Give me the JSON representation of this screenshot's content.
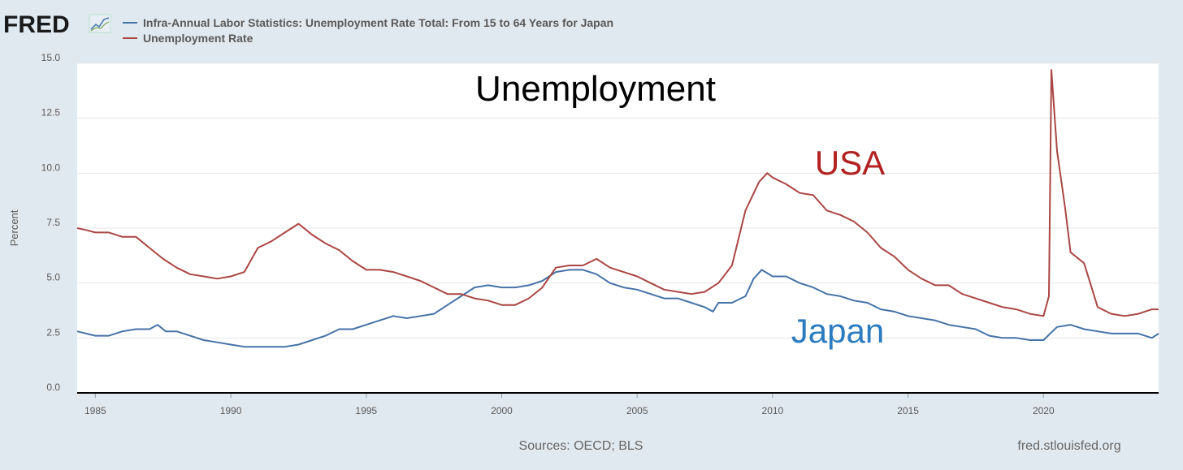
{
  "logo": {
    "text": "FRED",
    "icon": "chart-line-icon"
  },
  "chart_data": {
    "type": "line",
    "title": "Unemployment",
    "ylabel": "Percent",
    "xlabel": "",
    "xlim": [
      1984.33,
      2024.25
    ],
    "ylim": [
      0,
      15
    ],
    "yticks": [
      "0.0",
      "2.5",
      "5.0",
      "7.5",
      "10.0",
      "12.5",
      "15.0"
    ],
    "xticks": [
      "1985",
      "1990",
      "1995",
      "2000",
      "2005",
      "2010",
      "2015",
      "2020"
    ],
    "grid": true,
    "legend_position": "top-left",
    "series": [
      {
        "name": "Infra-Annual Labor Statistics: Unemployment Rate Total: From 15 to 64 Years for Japan",
        "annotation": "Japan",
        "color": "#4572a7",
        "annotation_color": "#2a7bbf",
        "points": [
          [
            1984.33,
            2.8
          ],
          [
            1985.0,
            2.6
          ],
          [
            1985.5,
            2.6
          ],
          [
            1986.0,
            2.8
          ],
          [
            1986.5,
            2.9
          ],
          [
            1987.0,
            2.9
          ],
          [
            1987.3,
            3.1
          ],
          [
            1987.6,
            2.8
          ],
          [
            1988.0,
            2.8
          ],
          [
            1988.5,
            2.6
          ],
          [
            1989.0,
            2.4
          ],
          [
            1989.5,
            2.3
          ],
          [
            1990.0,
            2.2
          ],
          [
            1990.5,
            2.1
          ],
          [
            1991.0,
            2.1
          ],
          [
            1991.5,
            2.1
          ],
          [
            1992.0,
            2.1
          ],
          [
            1992.5,
            2.2
          ],
          [
            1993.0,
            2.4
          ],
          [
            1993.5,
            2.6
          ],
          [
            1994.0,
            2.9
          ],
          [
            1994.5,
            2.9
          ],
          [
            1995.0,
            3.1
          ],
          [
            1995.5,
            3.3
          ],
          [
            1996.0,
            3.5
          ],
          [
            1996.5,
            3.4
          ],
          [
            1997.0,
            3.5
          ],
          [
            1997.5,
            3.6
          ],
          [
            1998.0,
            4.0
          ],
          [
            1998.5,
            4.4
          ],
          [
            1999.0,
            4.8
          ],
          [
            1999.5,
            4.9
          ],
          [
            2000.0,
            4.8
          ],
          [
            2000.5,
            4.8
          ],
          [
            2001.0,
            4.9
          ],
          [
            2001.5,
            5.1
          ],
          [
            2002.0,
            5.5
          ],
          [
            2002.5,
            5.6
          ],
          [
            2003.0,
            5.6
          ],
          [
            2003.5,
            5.4
          ],
          [
            2004.0,
            5.0
          ],
          [
            2004.5,
            4.8
          ],
          [
            2005.0,
            4.7
          ],
          [
            2005.5,
            4.5
          ],
          [
            2006.0,
            4.3
          ],
          [
            2006.5,
            4.3
          ],
          [
            2007.0,
            4.1
          ],
          [
            2007.5,
            3.9
          ],
          [
            2007.8,
            3.7
          ],
          [
            2008.0,
            4.1
          ],
          [
            2008.5,
            4.1
          ],
          [
            2009.0,
            4.4
          ],
          [
            2009.3,
            5.2
          ],
          [
            2009.6,
            5.6
          ],
          [
            2010.0,
            5.3
          ],
          [
            2010.5,
            5.3
          ],
          [
            2011.0,
            5.0
          ],
          [
            2011.5,
            4.8
          ],
          [
            2012.0,
            4.5
          ],
          [
            2012.5,
            4.4
          ],
          [
            2013.0,
            4.2
          ],
          [
            2013.5,
            4.1
          ],
          [
            2014.0,
            3.8
          ],
          [
            2014.5,
            3.7
          ],
          [
            2015.0,
            3.5
          ],
          [
            2015.5,
            3.4
          ],
          [
            2016.0,
            3.3
          ],
          [
            2016.5,
            3.1
          ],
          [
            2017.0,
            3.0
          ],
          [
            2017.5,
            2.9
          ],
          [
            2018.0,
            2.6
          ],
          [
            2018.5,
            2.5
          ],
          [
            2019.0,
            2.5
          ],
          [
            2019.5,
            2.4
          ],
          [
            2020.0,
            2.4
          ],
          [
            2020.5,
            3.0
          ],
          [
            2021.0,
            3.1
          ],
          [
            2021.5,
            2.9
          ],
          [
            2022.0,
            2.8
          ],
          [
            2022.5,
            2.7
          ],
          [
            2023.0,
            2.7
          ],
          [
            2023.5,
            2.7
          ],
          [
            2024.0,
            2.5
          ],
          [
            2024.25,
            2.7
          ]
        ]
      },
      {
        "name": "Unemployment Rate",
        "annotation": "USA",
        "color": "#aa4643",
        "annotation_color": "#b22222",
        "points": [
          [
            1984.33,
            7.5
          ],
          [
            1984.7,
            7.4
          ],
          [
            1985.0,
            7.3
          ],
          [
            1985.5,
            7.3
          ],
          [
            1986.0,
            7.1
          ],
          [
            1986.5,
            7.1
          ],
          [
            1987.0,
            6.6
          ],
          [
            1987.5,
            6.1
          ],
          [
            1988.0,
            5.7
          ],
          [
            1988.5,
            5.4
          ],
          [
            1989.0,
            5.3
          ],
          [
            1989.5,
            5.2
          ],
          [
            1990.0,
            5.3
          ],
          [
            1990.5,
            5.5
          ],
          [
            1991.0,
            6.6
          ],
          [
            1991.5,
            6.9
          ],
          [
            1992.0,
            7.3
          ],
          [
            1992.5,
            7.7
          ],
          [
            1993.0,
            7.2
          ],
          [
            1993.5,
            6.8
          ],
          [
            1994.0,
            6.5
          ],
          [
            1994.5,
            6.0
          ],
          [
            1995.0,
            5.6
          ],
          [
            1995.5,
            5.6
          ],
          [
            1996.0,
            5.5
          ],
          [
            1996.5,
            5.3
          ],
          [
            1997.0,
            5.1
          ],
          [
            1997.5,
            4.8
          ],
          [
            1998.0,
            4.5
          ],
          [
            1998.5,
            4.5
          ],
          [
            1999.0,
            4.3
          ],
          [
            1999.5,
            4.2
          ],
          [
            2000.0,
            4.0
          ],
          [
            2000.5,
            4.0
          ],
          [
            2001.0,
            4.3
          ],
          [
            2001.5,
            4.8
          ],
          [
            2002.0,
            5.7
          ],
          [
            2002.5,
            5.8
          ],
          [
            2003.0,
            5.8
          ],
          [
            2003.5,
            6.1
          ],
          [
            2004.0,
            5.7
          ],
          [
            2004.5,
            5.5
          ],
          [
            2005.0,
            5.3
          ],
          [
            2005.5,
            5.0
          ],
          [
            2006.0,
            4.7
          ],
          [
            2006.5,
            4.6
          ],
          [
            2007.0,
            4.5
          ],
          [
            2007.5,
            4.6
          ],
          [
            2008.0,
            5.0
          ],
          [
            2008.5,
            5.8
          ],
          [
            2009.0,
            8.3
          ],
          [
            2009.5,
            9.6
          ],
          [
            2009.8,
            10.0
          ],
          [
            2010.0,
            9.8
          ],
          [
            2010.5,
            9.5
          ],
          [
            2011.0,
            9.1
          ],
          [
            2011.5,
            9.0
          ],
          [
            2012.0,
            8.3
          ],
          [
            2012.5,
            8.1
          ],
          [
            2013.0,
            7.8
          ],
          [
            2013.5,
            7.3
          ],
          [
            2014.0,
            6.6
          ],
          [
            2014.5,
            6.2
          ],
          [
            2015.0,
            5.6
          ],
          [
            2015.5,
            5.2
          ],
          [
            2016.0,
            4.9
          ],
          [
            2016.5,
            4.9
          ],
          [
            2017.0,
            4.5
          ],
          [
            2017.5,
            4.3
          ],
          [
            2018.0,
            4.1
          ],
          [
            2018.5,
            3.9
          ],
          [
            2019.0,
            3.8
          ],
          [
            2019.5,
            3.6
          ],
          [
            2020.0,
            3.5
          ],
          [
            2020.2,
            4.4
          ],
          [
            2020.29,
            14.7
          ],
          [
            2020.5,
            11.0
          ],
          [
            2020.8,
            8.4
          ],
          [
            2021.0,
            6.4
          ],
          [
            2021.5,
            5.9
          ],
          [
            2022.0,
            3.9
          ],
          [
            2022.5,
            3.6
          ],
          [
            2023.0,
            3.5
          ],
          [
            2023.5,
            3.6
          ],
          [
            2024.0,
            3.8
          ],
          [
            2024.25,
            3.8
          ]
        ]
      }
    ],
    "sources": "Sources: OECD; BLS",
    "site": "fred.stlouisfed.org"
  }
}
